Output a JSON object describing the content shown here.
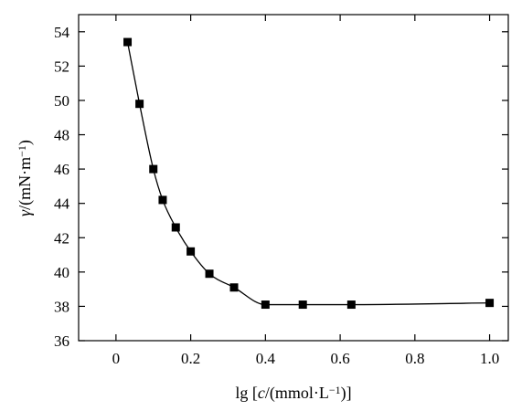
{
  "chart_data": {
    "type": "line",
    "title": "",
    "xlabel_parts": [
      "lg [",
      "c",
      "/(mmol·L",
      "−1",
      ")]"
    ],
    "ylabel_parts": [
      "γ",
      "/(mN·m",
      "−1",
      ")"
    ],
    "xlim": [
      -0.1,
      1.05
    ],
    "ylim": [
      36,
      55
    ],
    "xticks": [
      0,
      0.2,
      0.4,
      0.6,
      0.8,
      1.0
    ],
    "xtick_labels": [
      "0",
      "0.2",
      "0.4",
      "0.6",
      "0.8",
      "1.0"
    ],
    "yticks": [
      36,
      38,
      40,
      42,
      44,
      46,
      48,
      50,
      52,
      54
    ],
    "ytick_labels": [
      "36",
      "38",
      "40",
      "42",
      "44",
      "46",
      "48",
      "50",
      "52",
      "54"
    ],
    "grid": false,
    "series": [
      {
        "marker": "square",
        "color": "#000000",
        "smooth": true,
        "x": [
          0.031,
          0.063,
          0.1,
          0.125,
          0.16,
          0.2,
          0.25,
          0.316,
          0.4,
          0.5,
          0.63,
          1.0
        ],
        "y": [
          53.4,
          49.8,
          46.0,
          44.2,
          42.6,
          41.2,
          39.9,
          39.1,
          38.1,
          38.1,
          38.1,
          38.2
        ]
      }
    ]
  }
}
